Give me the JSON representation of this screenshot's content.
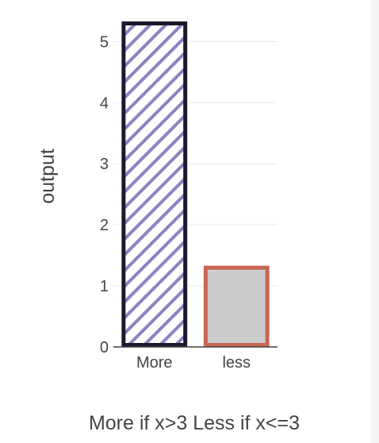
{
  "chart_data": {
    "type": "bar",
    "categories": [
      "More",
      "less"
    ],
    "values": [
      5.33,
      1.33
    ],
    "ylabel": "output",
    "xlabel": "More if x>3 Less if x<=3",
    "ylim": [
      0,
      5.33
    ],
    "yticks": [
      "0",
      "1",
      "2",
      "3",
      "4",
      "5"
    ],
    "grid": true,
    "legend": "none",
    "bar_styles": [
      {
        "fill": "#ffffff",
        "pattern": "diagonal-stripes",
        "pattern_color": "#8b83c2",
        "outline": "#1b1b2f"
      },
      {
        "fill": "#cccccc",
        "pattern": "none",
        "outline": "#c96452"
      }
    ]
  }
}
